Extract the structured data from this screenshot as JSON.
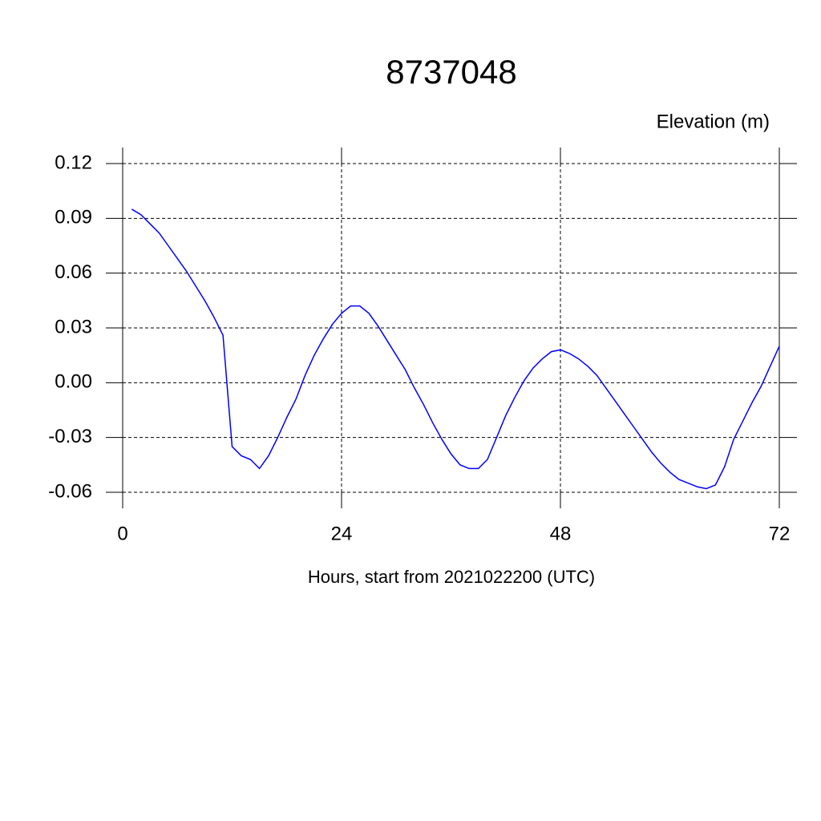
{
  "chart_data": {
    "type": "line",
    "title": "8737048",
    "subtitle": "Elevation (m)",
    "x_label": "Hours, start from 2021022200 (UTC)",
    "x": [
      1,
      2,
      3,
      4,
      5,
      6,
      7,
      8,
      9,
      10,
      11,
      12,
      13,
      14,
      15,
      16,
      17,
      18,
      19,
      20,
      21,
      22,
      23,
      24,
      25,
      26,
      27,
      28,
      29,
      30,
      31,
      32,
      33,
      34,
      35,
      36,
      37,
      38,
      39,
      40,
      41,
      42,
      43,
      44,
      45,
      46,
      47,
      48,
      49,
      50,
      51,
      52,
      53,
      54,
      55,
      56,
      57,
      58,
      59,
      60,
      61,
      62,
      63,
      64,
      65,
      66,
      67,
      68,
      69,
      70,
      71,
      72
    ],
    "series": [
      {
        "color": "#0000ff",
        "values": [
          0.095,
          0.092,
          0.087,
          0.082,
          0.075,
          0.068,
          0.061,
          0.053,
          0.045,
          0.036,
          0.026,
          -0.035,
          -0.04,
          -0.042,
          -0.047,
          -0.04,
          -0.03,
          -0.019,
          -0.009,
          0.004,
          0.015,
          0.024,
          0.032,
          0.038,
          0.042,
          0.042,
          0.038,
          0.031,
          0.023,
          0.015,
          0.007,
          -0.003,
          -0.012,
          -0.022,
          -0.031,
          -0.039,
          -0.045,
          -0.047,
          -0.047,
          -0.042,
          -0.03,
          -0.018,
          -0.008,
          0.001,
          0.008,
          0.013,
          0.017,
          0.018,
          0.016,
          0.013,
          0.009,
          0.004,
          -0.003,
          -0.01,
          -0.017,
          -0.024,
          -0.031,
          -0.038,
          -0.044,
          -0.049,
          -0.053,
          -0.055,
          -0.057,
          -0.058,
          -0.056,
          -0.046,
          -0.031,
          -0.021,
          -0.011,
          -0.002,
          0.009,
          0.02
        ]
      }
    ],
    "xlim": [
      0,
      72
    ],
    "xticks": [
      0,
      24,
      48,
      72
    ],
    "ylim": [
      -0.06,
      0.12
    ],
    "yticks": [
      0.12,
      0.09,
      0.06,
      0.03,
      {
        "value": 0,
        "label": "0.00"
      },
      -0.03,
      -0.06
    ],
    "grid": true
  }
}
